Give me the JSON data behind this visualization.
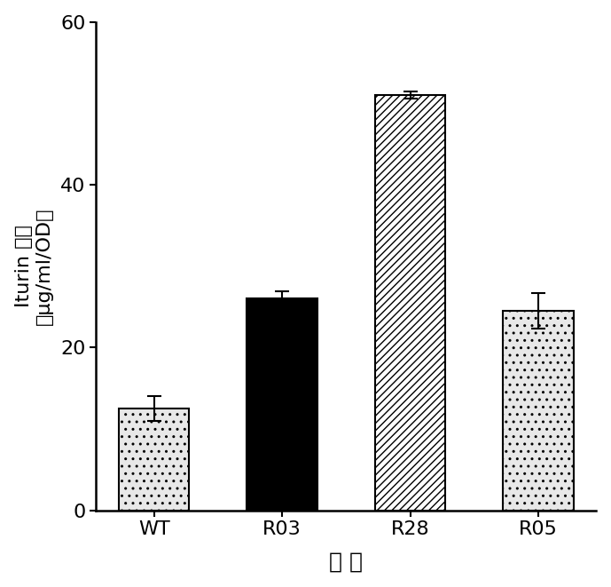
{
  "categories": [
    "WT",
    "R03",
    "R28",
    "R05"
  ],
  "values": [
    12.5,
    26.0,
    51.0,
    24.5
  ],
  "errors": [
    1.5,
    0.9,
    0.4,
    2.2
  ],
  "ylim": [
    0,
    60
  ],
  "yticks": [
    0,
    20,
    40,
    60
  ],
  "ylabel_part1": "Iturin ",
  "ylabel_part2": "产量",
  "ylabel_part3": "（μg/ml/OD）",
  "xlabel": "菌 株",
  "bar_width": 0.55,
  "hatches": [
    "..",
    "",
    "////",
    ".."
  ],
  "facecolors": [
    "#e8e8e8",
    "#000000",
    "#ffffff",
    "#e8e8e8"
  ],
  "edgecolors": [
    "#000000",
    "#000000",
    "#000000",
    "#000000"
  ],
  "background_color": "#ffffff",
  "figsize": [
    6.89,
    6.61
  ],
  "dpi": 100,
  "spine_linewidth": 1.8,
  "tick_fontsize": 16,
  "label_fontsize": 16,
  "xlabel_fontsize": 18
}
